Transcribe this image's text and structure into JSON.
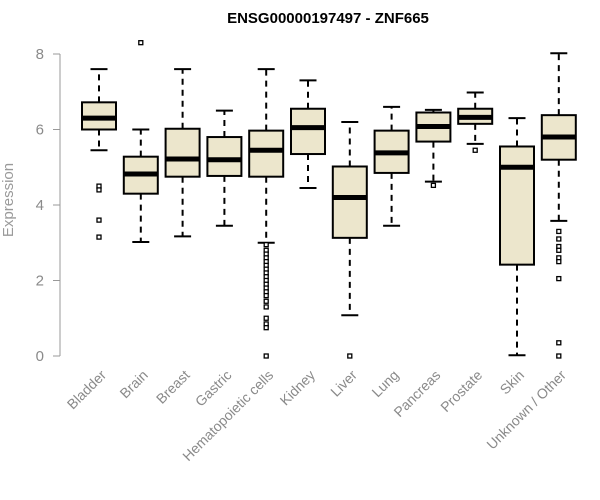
{
  "chart_data": {
    "type": "boxplot",
    "title": "ENSG00000197497 - ZNF665",
    "xlabel": "",
    "ylabel": "Expression",
    "ylim": [
      0,
      8.4
    ],
    "yticks": [
      0,
      2,
      4,
      6,
      8
    ],
    "box_fill": "#ece6cc",
    "line_color": "#000000",
    "axis_color": "#999999",
    "categories": [
      "Bladder",
      "Brain",
      "Breast",
      "Gastric",
      "Hematopoietic cells",
      "Kidney",
      "Liver",
      "Lung",
      "Pancreas",
      "Prostate",
      "Skin",
      "Unknown / Other"
    ],
    "series": [
      {
        "name": "Bladder",
        "min": 5.45,
        "q1": 6.0,
        "median": 6.3,
        "q3": 6.72,
        "max": 7.6,
        "outliers": [
          4.5,
          4.4,
          3.6,
          3.15
        ]
      },
      {
        "name": "Brain",
        "min": 3.02,
        "q1": 4.3,
        "median": 4.82,
        "q3": 5.28,
        "max": 6.0,
        "outliers": [
          8.3
        ]
      },
      {
        "name": "Breast",
        "min": 3.17,
        "q1": 4.75,
        "median": 5.22,
        "q3": 6.02,
        "max": 7.6,
        "outliers": []
      },
      {
        "name": "Gastric",
        "min": 3.45,
        "q1": 4.77,
        "median": 5.2,
        "q3": 5.8,
        "max": 6.5,
        "outliers": []
      },
      {
        "name": "Hematopoietic cells",
        "min": 3.0,
        "q1": 4.75,
        "median": 5.45,
        "q3": 5.97,
        "max": 7.6,
        "outliers": [
          2.95,
          2.8,
          2.7,
          2.6,
          2.5,
          2.4,
          2.3,
          2.2,
          2.1,
          2.0,
          1.9,
          1.8,
          1.7,
          1.6,
          1.45,
          1.3,
          1.0,
          0.85,
          0.75,
          0.0
        ]
      },
      {
        "name": "Kidney",
        "min": 4.45,
        "q1": 5.35,
        "median": 6.05,
        "q3": 6.55,
        "max": 7.3,
        "outliers": []
      },
      {
        "name": "Liver",
        "min": 1.08,
        "q1": 3.13,
        "median": 4.2,
        "q3": 5.02,
        "max": 6.2,
        "outliers": [
          0.0
        ]
      },
      {
        "name": "Lung",
        "min": 3.45,
        "q1": 4.85,
        "median": 5.38,
        "q3": 5.97,
        "max": 6.6,
        "outliers": []
      },
      {
        "name": "Pancreas",
        "min": 4.62,
        "q1": 5.68,
        "median": 6.08,
        "q3": 6.45,
        "max": 6.52,
        "outliers": [
          4.52
        ]
      },
      {
        "name": "Prostate",
        "min": 5.62,
        "q1": 6.15,
        "median": 6.32,
        "q3": 6.55,
        "max": 6.98,
        "outliers": [
          5.45
        ]
      },
      {
        "name": "Skin",
        "min": 0.02,
        "q1": 2.42,
        "median": 5.0,
        "q3": 5.55,
        "max": 6.3,
        "outliers": []
      },
      {
        "name": "Unknown / Other",
        "min": 3.58,
        "q1": 5.2,
        "median": 5.8,
        "q3": 6.38,
        "max": 8.02,
        "outliers": [
          3.3,
          3.1,
          2.9,
          2.8,
          2.6,
          2.5,
          2.05,
          0.35,
          0.0
        ]
      }
    ]
  }
}
